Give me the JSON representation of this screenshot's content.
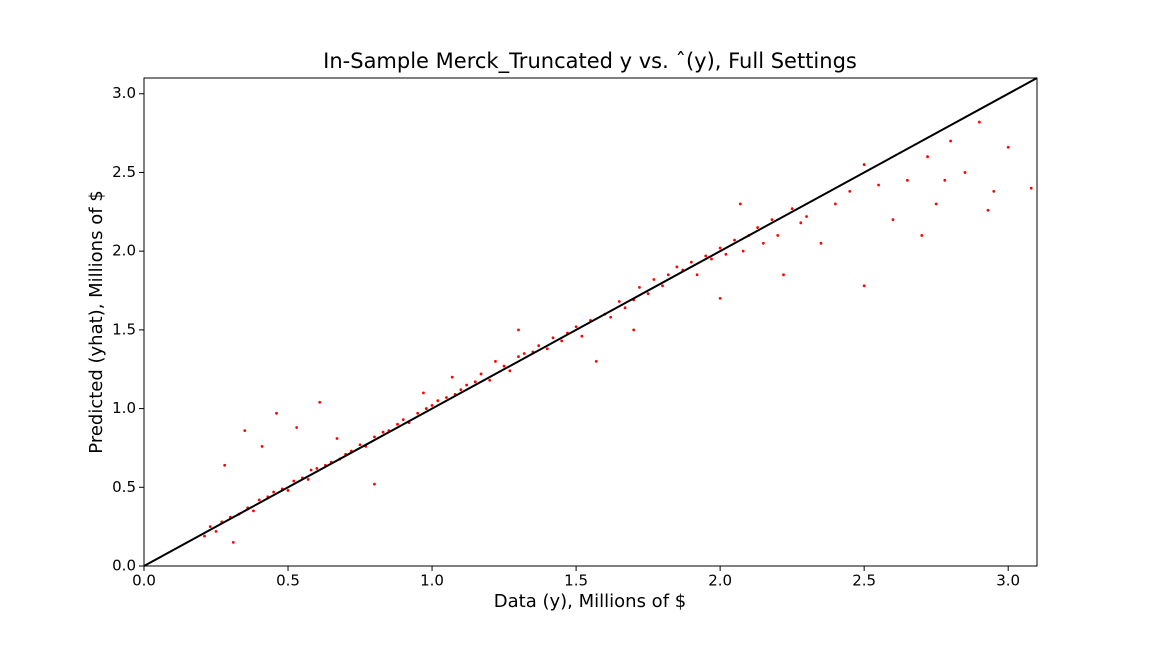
{
  "chart_data": {
    "type": "scatter",
    "title": "In-Sample Merck_Truncated y vs. ˆ(y), Full Settings",
    "x_label": "Data (y), Millions of $",
    "y_label": "Predicted (yhat), Millions of $",
    "color": "#ff0000",
    "x": [
      0.21,
      0.23,
      0.25,
      0.27,
      0.28,
      0.3,
      0.31,
      0.33,
      0.35,
      0.36,
      0.38,
      0.4,
      0.41,
      0.43,
      0.45,
      0.46,
      0.48,
      0.5,
      0.52,
      0.53,
      0.55,
      0.57,
      0.58,
      0.6,
      0.61,
      0.63,
      0.65,
      0.67,
      0.68,
      0.7,
      0.72,
      0.75,
      0.77,
      0.8,
      0.8,
      0.83,
      0.85,
      0.88,
      0.9,
      0.92,
      0.95,
      0.97,
      0.98,
      1.0,
      1.02,
      1.05,
      1.07,
      1.08,
      1.1,
      1.12,
      1.15,
      1.17,
      1.2,
      1.22,
      1.25,
      1.27,
      1.3,
      1.3,
      1.32,
      1.35,
      1.37,
      1.4,
      1.42,
      1.45,
      1.47,
      1.5,
      1.52,
      1.55,
      1.57,
      1.6,
      1.62,
      1.65,
      1.67,
      1.7,
      1.7,
      1.72,
      1.75,
      1.77,
      1.8,
      1.82,
      1.85,
      1.87,
      1.9,
      1.92,
      1.95,
      1.97,
      2.0,
      2.0,
      2.02,
      2.05,
      2.07,
      2.08,
      2.1,
      2.13,
      2.15,
      2.18,
      2.2,
      2.22,
      2.25,
      2.28,
      2.3,
      2.35,
      2.4,
      2.45,
      2.5,
      2.5,
      2.55,
      2.6,
      2.65,
      2.7,
      2.72,
      2.75,
      2.78,
      2.8,
      2.85,
      2.9,
      2.93,
      2.95,
      3.0,
      3.08
    ],
    "y": [
      0.19,
      0.25,
      0.22,
      0.28,
      0.64,
      0.31,
      0.15,
      0.33,
      0.86,
      0.37,
      0.35,
      0.42,
      0.76,
      0.44,
      0.47,
      0.97,
      0.49,
      0.48,
      0.54,
      0.88,
      0.56,
      0.55,
      0.61,
      0.62,
      1.04,
      0.64,
      0.66,
      0.81,
      0.68,
      0.71,
      0.73,
      0.77,
      0.76,
      0.52,
      0.82,
      0.85,
      0.86,
      0.9,
      0.93,
      0.91,
      0.97,
      1.1,
      1.0,
      1.02,
      1.05,
      1.07,
      1.2,
      1.09,
      1.12,
      1.15,
      1.17,
      1.22,
      1.18,
      1.3,
      1.27,
      1.24,
      1.33,
      1.5,
      1.35,
      1.36,
      1.4,
      1.38,
      1.45,
      1.43,
      1.48,
      1.52,
      1.46,
      1.56,
      1.3,
      1.6,
      1.58,
      1.68,
      1.64,
      1.69,
      1.5,
      1.77,
      1.73,
      1.82,
      1.78,
      1.85,
      1.9,
      1.88,
      1.93,
      1.85,
      1.97,
      1.95,
      2.02,
      1.7,
      1.98,
      2.07,
      2.3,
      2.0,
      2.1,
      2.15,
      2.05,
      2.2,
      2.1,
      1.85,
      2.27,
      2.18,
      2.22,
      2.05,
      2.3,
      2.38,
      2.55,
      1.78,
      2.42,
      2.2,
      2.45,
      2.1,
      2.6,
      2.3,
      2.45,
      2.7,
      2.5,
      2.82,
      2.26,
      2.38,
      2.66,
      2.4
    ],
    "reference_line": {
      "x": [
        0,
        3.1
      ],
      "y": [
        0,
        3.1
      ],
      "color": "#000000"
    },
    "xlim": [
      0,
      3.1
    ],
    "ylim": [
      0,
      3.1
    ],
    "xticks": [
      {
        "value": 0,
        "label": "0.0"
      },
      0.5,
      {
        "value": 1,
        "label": "1.0"
      },
      1.5,
      {
        "value": 2,
        "label": "2.0"
      },
      2.5,
      {
        "value": 3,
        "label": "3.0"
      }
    ],
    "yticks": [
      {
        "value": 0,
        "label": "0.0"
      },
      0.5,
      {
        "value": 1,
        "label": "1.0"
      },
      1.5,
      {
        "value": 2,
        "label": "2.0"
      },
      2.5,
      {
        "value": 3,
        "label": "3.0"
      }
    ],
    "grid": false
  }
}
